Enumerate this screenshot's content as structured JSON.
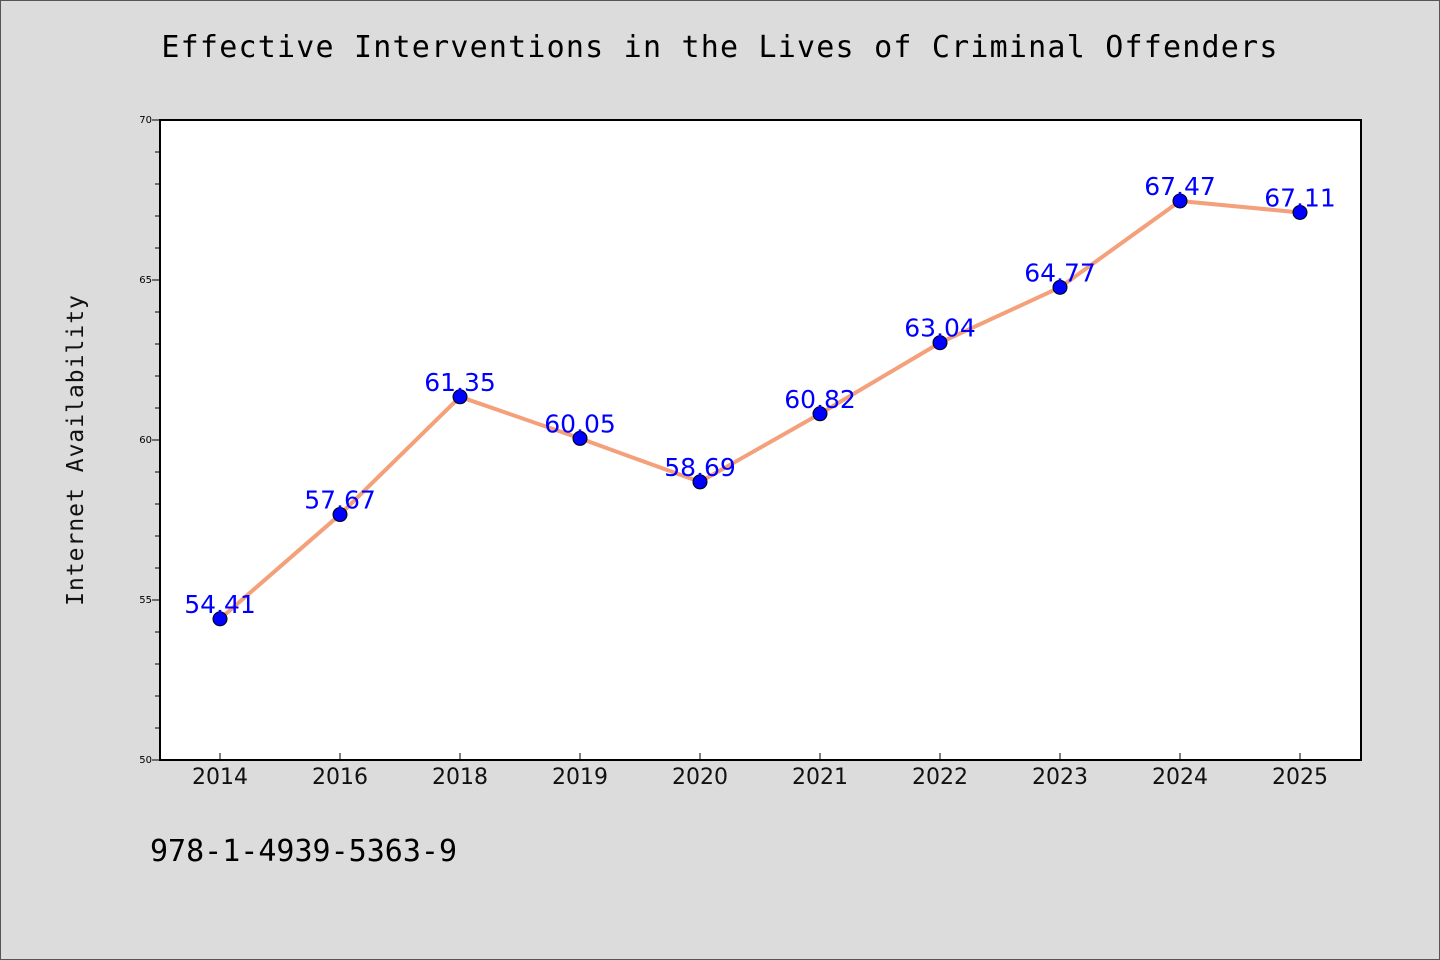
{
  "chart_data": {
    "type": "line",
    "title": "Effective Interventions in the Lives of Criminal Offenders",
    "xlabel": "",
    "ylabel": "Internet Availability",
    "categories": [
      "2014",
      "2016",
      "2018",
      "2019",
      "2020",
      "2021",
      "2022",
      "2023",
      "2024",
      "2025"
    ],
    "series": [
      {
        "values": [
          54.41,
          57.67,
          61.35,
          60.05,
          58.69,
          60.82,
          63.04,
          64.77,
          67.47,
          67.11
        ],
        "line_color": "#f4a07a",
        "marker_color": "#0000ff"
      }
    ],
    "ylim": [
      50,
      70
    ],
    "yticks": [
      50,
      55,
      60,
      65,
      70
    ],
    "grid": false,
    "legend": "none"
  },
  "footer": {
    "isbn": "978-1-4939-5363-9"
  },
  "colors": {
    "background": "#dcdcdc",
    "plot_background": "#ffffff",
    "data_label": "#0000ff"
  }
}
